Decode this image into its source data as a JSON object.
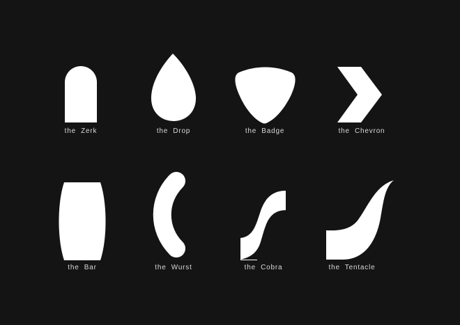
{
  "colors": {
    "background": "#141414",
    "shape": "#ffffff",
    "label": "#d9d9d9"
  },
  "shapes": [
    {
      "name": "zerk-icon",
      "label": "the  Zerk"
    },
    {
      "name": "drop-icon",
      "label": "the  Drop"
    },
    {
      "name": "badge-icon",
      "label": "the  Badge"
    },
    {
      "name": "chevron-icon",
      "label": "the  Chevron"
    },
    {
      "name": "bar-icon",
      "label": "the  Bar"
    },
    {
      "name": "wurst-icon",
      "label": "the  Wurst"
    },
    {
      "name": "cobra-icon",
      "label": "the  Cobra"
    },
    {
      "name": "tentacle-icon",
      "label": "the  Tentacle"
    }
  ]
}
